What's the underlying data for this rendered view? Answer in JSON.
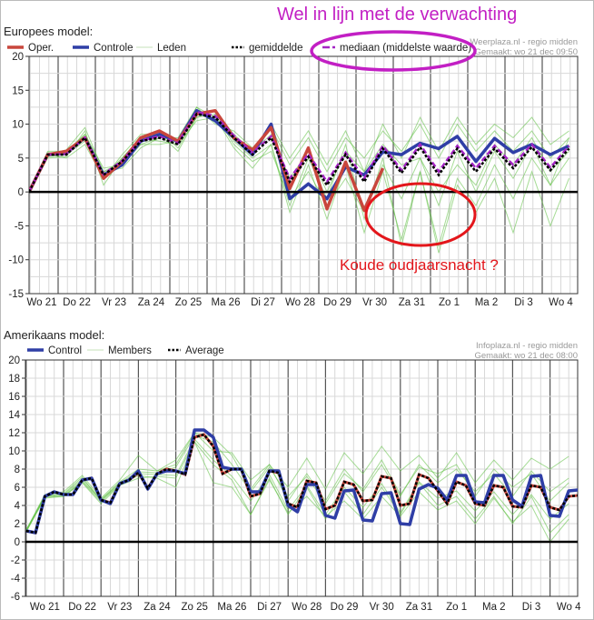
{
  "annotations": {
    "top_note": "Wel in lijn met de verwachting",
    "cold_note": "Koude oudjaarsnacht ?",
    "top_note_color": "#c21fc4",
    "cold_note_color": "#e3161b"
  },
  "chart_data": [
    {
      "type": "line",
      "title": "Europees model:",
      "source": "Weerplaza.nl - regio midden",
      "made": "Gemaakt: wo 21 dec 09:50",
      "ylim": [
        -15,
        20
      ],
      "yticks": [
        20,
        15,
        10,
        5,
        0,
        -5,
        -10,
        -15
      ],
      "grid": true,
      "legend_position": "top-left",
      "x_unit": "days since wo 21 dec 00:00",
      "day_labels": [
        "Wo 21",
        "Do 22",
        "Vr 23",
        "Za 24",
        "Zo 25",
        "Ma 26",
        "Di 27",
        "Wo 28",
        "Do 29",
        "Vr 30",
        "Za 31",
        "Zo 1",
        "Ma 2",
        "Di 3",
        "Wo 4"
      ],
      "legend": [
        {
          "key": "oper",
          "label": "Oper."
        },
        {
          "key": "control",
          "label": "Controle"
        },
        {
          "key": "members",
          "label": "Leden"
        },
        {
          "key": "mean",
          "label": "gemiddelde"
        },
        {
          "key": "median",
          "label": "mediaan (middelste waarde)"
        }
      ],
      "colors": {
        "oper": "#c8463c",
        "control": "#2f3ea6",
        "members": "#5cbf3f",
        "mean": "#000000",
        "median": "#a424c4"
      },
      "start_day": 0.22,
      "step_days": 0.5,
      "series": {
        "control": [
          0,
          5.5,
          5.8,
          8,
          2.5,
          4,
          7.5,
          8.5,
          7.5,
          12,
          10.5,
          8,
          5.5,
          10,
          -1,
          1.2,
          -1,
          3.7,
          2.5,
          5.9,
          5.5,
          7.2,
          6.4,
          8.2,
          4.5,
          7.9,
          5.8,
          7,
          5.5,
          6.8
        ],
        "oper": [
          0,
          5.5,
          6,
          8,
          2,
          4.5,
          8,
          9,
          7.5,
          11.5,
          12,
          8,
          6.2,
          9.5,
          0.5,
          6.5,
          -2.5,
          4.4,
          -2.7,
          3.5
        ],
        "mean": [
          0,
          5.5,
          5.5,
          8,
          2.5,
          4.5,
          7.5,
          8,
          7,
          11.5,
          11,
          8,
          5.5,
          8,
          1.5,
          5.2,
          1,
          5.5,
          1.5,
          6.4,
          2.8,
          6.6,
          2.5,
          6.4,
          3,
          6.4,
          3.5,
          6.6,
          3.2,
          6.4
        ],
        "median": [
          0,
          5.5,
          5.6,
          8,
          2.6,
          4.6,
          7.6,
          8.2,
          7.2,
          11.8,
          11.2,
          8.3,
          5.8,
          8.2,
          2,
          5.6,
          1.5,
          5.8,
          2,
          6.8,
          3.2,
          7,
          3,
          6.8,
          3.5,
          6.8,
          4,
          7,
          3.6,
          6.8
        ],
        "members": [
          [
            0,
            5,
            5.2,
            9,
            1,
            5,
            8,
            9,
            6.5,
            11,
            12,
            7.5,
            5,
            7,
            -3,
            4,
            -4,
            4,
            -6,
            3,
            -7,
            3,
            -8,
            2,
            -2,
            4,
            -1,
            5,
            1,
            5
          ],
          [
            0,
            6,
            6,
            8.5,
            3.5,
            4,
            7,
            7,
            7.5,
            12.5,
            10,
            9,
            6.5,
            9.5,
            4,
            8,
            3,
            8,
            5,
            9,
            6,
            10,
            5,
            10,
            6,
            9,
            6,
            9,
            5,
            8
          ],
          [
            0,
            5.5,
            5,
            7,
            2,
            5.5,
            8.5,
            8.5,
            6,
            11,
            11.5,
            7,
            4.5,
            6,
            -1,
            3,
            -2,
            2,
            -3,
            4,
            -1,
            5,
            -2,
            6,
            0,
            6,
            2,
            7,
            1,
            8
          ],
          [
            0,
            5.8,
            5.8,
            8.5,
            3,
            3.5,
            6.5,
            8,
            7.5,
            11.5,
            12,
            8.5,
            6,
            8.5,
            2,
            6,
            0,
            6,
            3,
            7,
            4,
            5,
            0,
            4,
            1,
            7,
            4,
            8,
            3,
            6
          ],
          [
            0,
            5.2,
            5.5,
            7.5,
            2.5,
            5,
            8,
            7.5,
            7,
            10.5,
            11,
            6.5,
            3.5,
            7,
            -2,
            5,
            -1,
            7,
            -4,
            5,
            -8,
            3,
            -9,
            1,
            -3,
            2,
            -6,
            3,
            -5,
            2
          ],
          [
            0,
            5.6,
            6.2,
            9.5,
            3,
            4.5,
            7,
            8,
            8,
            12.5,
            11,
            8,
            6,
            10,
            5,
            9,
            4,
            9,
            3,
            10,
            5,
            11,
            6,
            11,
            7,
            10,
            8,
            11,
            7,
            9
          ]
        ]
      }
    },
    {
      "type": "line",
      "title": "Amerikaans model:",
      "source": "Infoplaza.nl - regio midden",
      "made": "Gemaakt: wo 21 dec 08:00",
      "ylim": [
        -6,
        20
      ],
      "yticks": [
        20,
        18,
        16,
        14,
        12,
        10,
        8,
        6,
        4,
        2,
        0,
        -2,
        -4,
        -6
      ],
      "grid": true,
      "legend_position": "top-left",
      "x_unit": "days since wo 21 dec 00:00",
      "day_labels": [
        "Wo 21",
        "Do 22",
        "Vr 23",
        "Za 24",
        "Zo 25",
        "Ma 26",
        "Di 27",
        "Wo 28",
        "Do 29",
        "Vr 30",
        "Za 31",
        "Zo 1",
        "Ma 2",
        "Di 3",
        "Wo 4"
      ],
      "legend": [
        {
          "key": "control",
          "label": "Control"
        },
        {
          "key": "members",
          "label": "Members"
        },
        {
          "key": "mean",
          "label": "Average"
        }
      ],
      "colors": {
        "control": "#2f3ea6",
        "members": "#5cbf3f",
        "mean": "#000000",
        "mean_under": "#c8463c"
      },
      "start_day": 0,
      "step_days": 0.25,
      "member_step_days": 0.5,
      "series": {
        "control": [
          1.2,
          1.0,
          5.0,
          5.5,
          5.2,
          5.2,
          6.8,
          7.0,
          4.6,
          4.2,
          6.4,
          6.8,
          7.8,
          5.8,
          7.5,
          7.8,
          7.8,
          7.5,
          12.3,
          12.3,
          11.5,
          8.2,
          8.0,
          8.0,
          5.5,
          5.5,
          7.8,
          7.8,
          4.0,
          3.3,
          6.3,
          6.3,
          2.9,
          2.6,
          5.6,
          5.7,
          2.4,
          2.3,
          5.3,
          5.4,
          2.0,
          1.9,
          5.8,
          6.3,
          5.9,
          4.6,
          7.3,
          7.3,
          4.4,
          4.3,
          7.3,
          7.3,
          4.6,
          3.9,
          7.2,
          7.3,
          2.9,
          2.8,
          5.6,
          5.7
        ],
        "mean": [
          1.2,
          1.0,
          5.0,
          5.5,
          5.2,
          5.2,
          6.8,
          7.0,
          4.6,
          4.3,
          6.4,
          6.8,
          7.6,
          5.9,
          7.5,
          8.0,
          7.8,
          7.4,
          11.5,
          11.8,
          10.5,
          7.5,
          8.0,
          8.0,
          5.0,
          5.3,
          7.8,
          7.6,
          4.2,
          3.8,
          6.7,
          6.5,
          3.6,
          4.0,
          6.6,
          6.3,
          4.5,
          4.6,
          7.2,
          7.0,
          4.0,
          4.2,
          7.4,
          7.0,
          5.6,
          4.2,
          6.6,
          6.2,
          4.2,
          4.0,
          6.2,
          6.0,
          3.9,
          3.8,
          6.2,
          6.0,
          3.8,
          3.5,
          5.0,
          5.1
        ],
        "members": [
          [
            1.3,
            5.2,
            5.5,
            7.3,
            4.8,
            6.8,
            9.5,
            7.8,
            8.5,
            12,
            10,
            9.8,
            6.8,
            8.5,
            6,
            9.2,
            5.8,
            9.8,
            7.5,
            10.5,
            7.8,
            9.5,
            7,
            9.8,
            6.5,
            9,
            6.8,
            9.2,
            8,
            9.4
          ],
          [
            1.1,
            4.8,
            5,
            6.5,
            4.2,
            6.2,
            7,
            7.2,
            7,
            11,
            6.5,
            6,
            3,
            7,
            3,
            6,
            2.5,
            5.5,
            3,
            6,
            3,
            6.5,
            4,
            5,
            2.5,
            5,
            2,
            5,
            1,
            3
          ],
          [
            1.2,
            5.1,
            5.3,
            7.1,
            4.5,
            6.6,
            8,
            7.8,
            9,
            12,
            11.5,
            9.5,
            5.8,
            8.5,
            4.5,
            7.5,
            4.5,
            8,
            5.5,
            8.5,
            5,
            8.5,
            6.5,
            8,
            5.5,
            7.5,
            5,
            7.8,
            5.5,
            7
          ],
          [
            1.2,
            4.9,
            5.0,
            6.6,
            4.4,
            6.3,
            7.3,
            7.0,
            6,
            11,
            8.5,
            6.8,
            3,
            6.8,
            3.2,
            5,
            2.8,
            4.5,
            2.5,
            5,
            2.8,
            5.5,
            3.5,
            4.5,
            2,
            4.8,
            2.2,
            4,
            0,
            2.5
          ],
          [
            1.3,
            5,
            5.2,
            6.9,
            4.7,
            6.5,
            7.7,
            7.6,
            8.2,
            11.7,
            11,
            8.5,
            5.5,
            8.2,
            5,
            7.2,
            4.2,
            7.5,
            5.8,
            9,
            5.2,
            8.2,
            7.5,
            8.5,
            5,
            8,
            6,
            7.5,
            4.5,
            6.5
          ],
          [
            1.1,
            5,
            5.1,
            6.7,
            4.6,
            6.3,
            7.5,
            7.4,
            7.3,
            11.3,
            9,
            7.2,
            4.5,
            7.4,
            3.5,
            6.2,
            3,
            6,
            3.8,
            6.4,
            3.2,
            6.6,
            4.8,
            5.6,
            3.4,
            5.5,
            3,
            5.2,
            2.5,
            4.2
          ]
        ]
      }
    }
  ]
}
